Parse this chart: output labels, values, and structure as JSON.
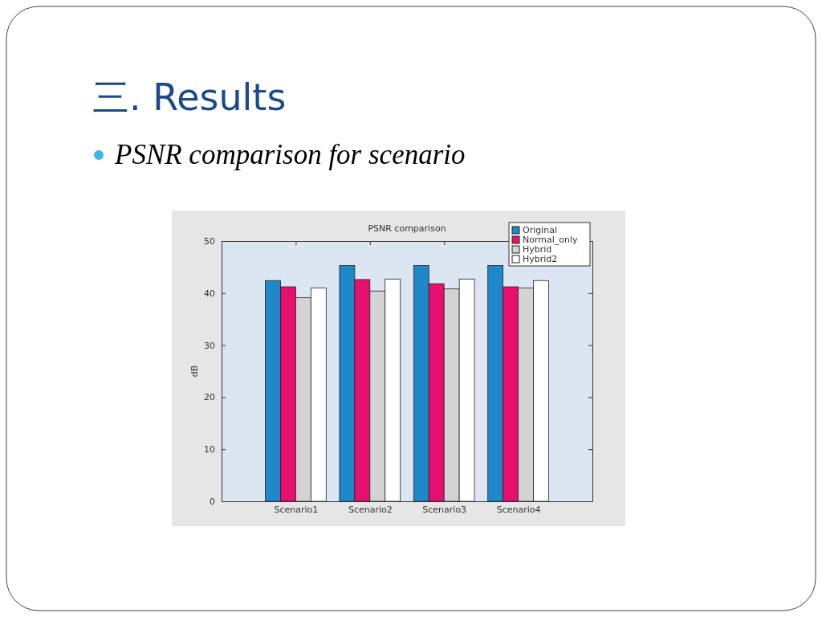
{
  "chart_data": {
    "type": "bar",
    "title": "PSNR comparison",
    "ylabel": "dB",
    "annotations": [
      "三. Results",
      "PSNR comparison for scenario"
    ],
    "categories": [
      "Scenario1",
      "Scenario2",
      "Scenario3",
      "Scenario4"
    ],
    "series": [
      {
        "name": "Original",
        "color": "#1e88c8",
        "values": [
          42.4,
          45.3,
          45.3,
          45.3
        ]
      },
      {
        "name": "Normal_only",
        "color": "#e8106e",
        "values": [
          41.2,
          42.6,
          41.8,
          41.2
        ]
      },
      {
        "name": "Hybrid",
        "color": "#d3d3d3",
        "values": [
          39.1,
          40.4,
          40.8,
          41.0
        ]
      },
      {
        "name": "Hybrid2",
        "color": "#ffffff",
        "values": [
          41.0,
          42.7,
          42.7,
          42.4
        ]
      }
    ],
    "ylim": [
      0,
      50
    ],
    "yticks": [
      0,
      10,
      20,
      30,
      40,
      50
    ],
    "grid": false,
    "legend": "top right"
  }
}
